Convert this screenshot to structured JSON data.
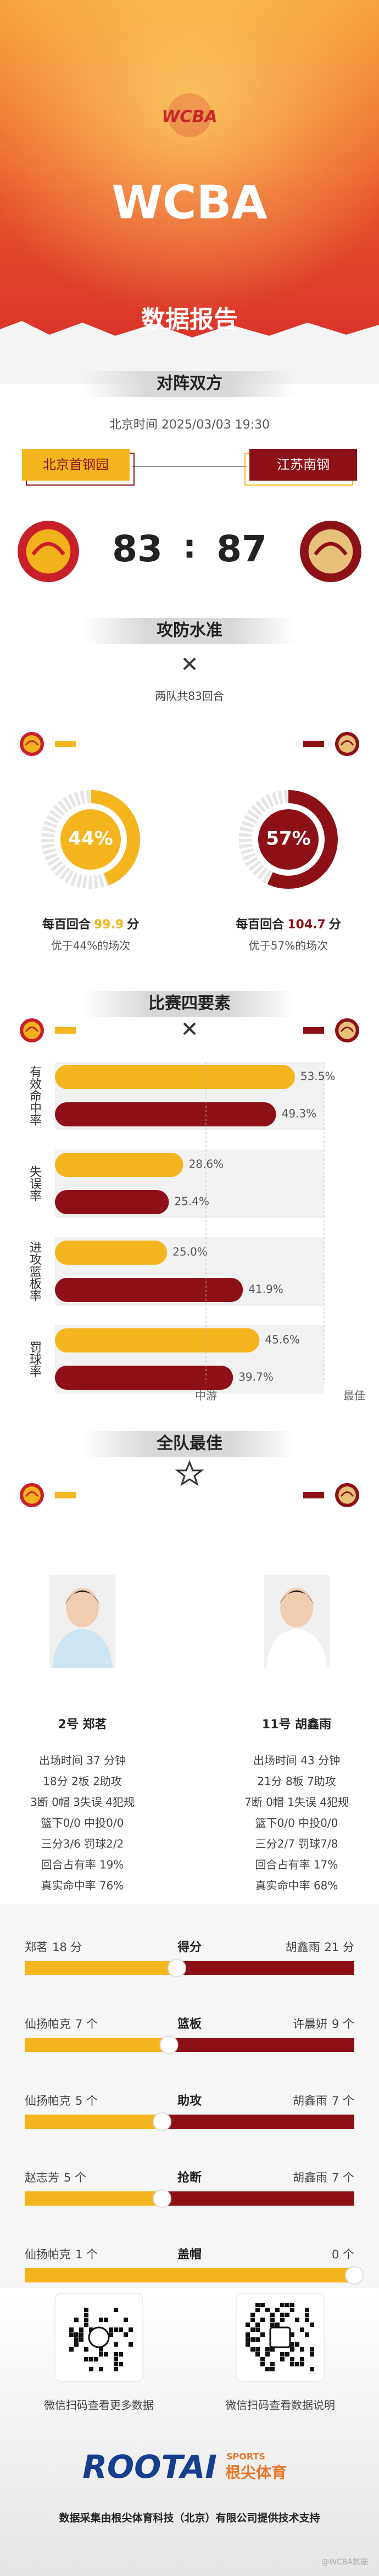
{
  "header": {
    "logo": "WCBA",
    "title": "WCBA",
    "subtitle": "数据报告"
  },
  "matchup": {
    "heading": "对阵双方",
    "time": "北京时间 2025/03/03 19:30",
    "home": "北京首钢园",
    "away": "江苏南钢",
    "home_score": 83,
    "separator": ":",
    "away_score": 87
  },
  "offense_defense": {
    "heading": "攻防水准",
    "possessions": "两队共83回合",
    "teams": [
      {
        "prefix": "每百回合",
        "rating": 99.9,
        "unit": "分",
        "note": "优于44%的场次"
      },
      {
        "prefix": "每百回合",
        "rating": 104.7,
        "unit": "分",
        "note": "优于57%的场次"
      }
    ]
  },
  "four_factors": {
    "heading": "比赛四要素"
  },
  "best": {
    "heading": "全队最佳",
    "players": [
      {
        "name": "2号 郑茗",
        "stats": [
          "出场时间 37 分钟",
          "18分  2板  2助攻",
          "3断  0帽  3失误  4犯规",
          "篮下0/0  中投0/0",
          "三分3/6  罚球2/2",
          "回合占有率 19%",
          "真实命中率 76%"
        ]
      },
      {
        "name": "11号 胡鑫雨",
        "stats": [
          "出场时间 43 分钟",
          "21分  8板  7助攻",
          "7断  0帽  1失误  4犯规",
          "篮下0/0  中投0/0",
          "三分2/7  罚球7/8",
          "回合占有率 17%",
          "真实命中率 68%"
        ]
      }
    ]
  },
  "chart_data": [
    {
      "type": "donut",
      "values": [
        44,
        57
      ],
      "value_labels": [
        "44%",
        "57%"
      ],
      "colors": [
        "#f5b51e",
        "#8d1017"
      ],
      "ylim": [
        0,
        100
      ]
    },
    {
      "type": "bar",
      "categories": [
        "有效命中率",
        "失误率",
        "进攻篮板率",
        "罚球率"
      ],
      "series": [
        {
          "color": "#f5b51e",
          "values": [
            53.5,
            28.6,
            25.0,
            45.6
          ],
          "value_labels": [
            "53.5%",
            "28.6%",
            "25.0%",
            "45.6%"
          ]
        },
        {
          "color": "#8d1017",
          "values": [
            49.3,
            25.4,
            41.9,
            39.7
          ],
          "value_labels": [
            "49.3%",
            "25.4%",
            "41.9%",
            "39.7%"
          ]
        }
      ],
      "xlim": [
        0,
        60
      ],
      "scale_labels": [
        "中游",
        "最佳"
      ]
    },
    {
      "type": "diverging",
      "categories": [
        "得分",
        "篮板",
        "助攻",
        "抢断",
        "盖帽"
      ],
      "players_left": [
        "郑茗",
        "仙扬帕克",
        "仙扬帕克",
        "赵志芳",
        "仙扬帕克"
      ],
      "players_right": [
        "胡鑫雨",
        "许晨妍",
        "胡鑫雨",
        "胡鑫雨",
        null
      ],
      "series": [
        {
          "color": "#f5b51e",
          "values": [
            18,
            7,
            5,
            5,
            1
          ],
          "value_labels": [
            "18 分",
            "7 个",
            "5 个",
            "5 个",
            "1 个"
          ]
        },
        {
          "color": "#8d1017",
          "values": [
            21,
            9,
            7,
            7,
            0
          ],
          "value_labels": [
            "21 分",
            "9 个",
            "7 个",
            "7 个",
            "0 个"
          ]
        }
      ]
    }
  ],
  "footer": {
    "qr_captions": [
      "微信扫码查看更多数据",
      "微信扫码查看数据说明"
    ],
    "brand": "ROOTAI",
    "brand_en": "SPORTS",
    "brand_cn": "根尖体育",
    "credit": "数据采集由根尖体育科技（北京）有限公司提供技术支持",
    "watermark": "@WCBA数据"
  }
}
